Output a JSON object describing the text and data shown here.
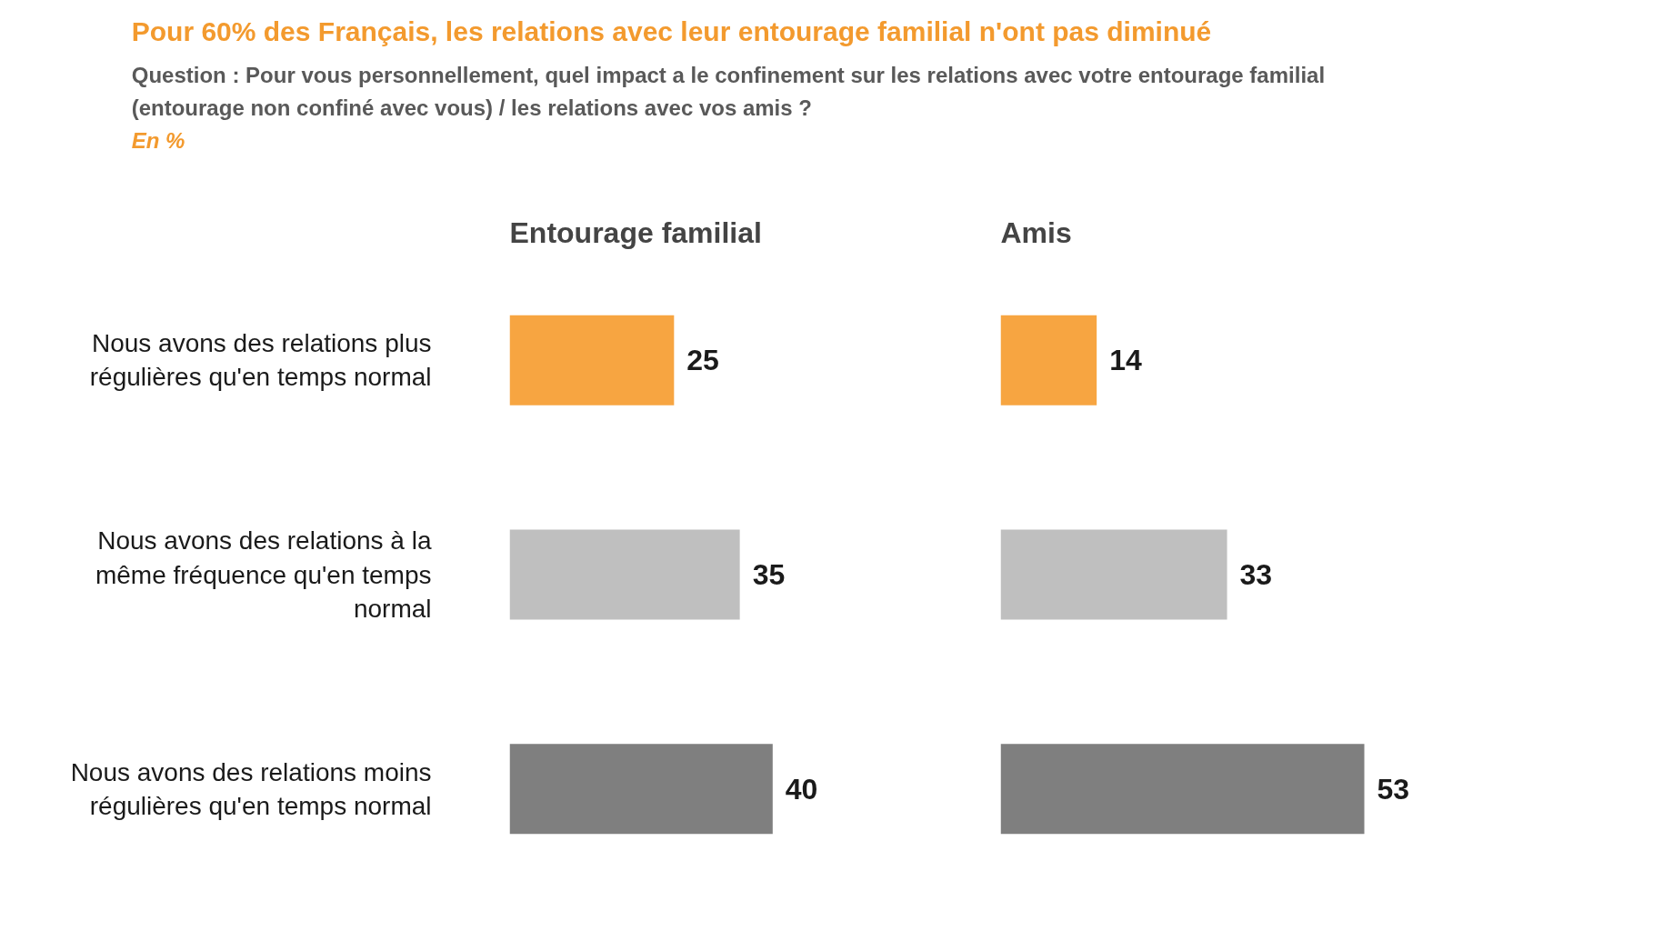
{
  "chart_data": [
    {
      "type": "bar",
      "orientation": "horizontal",
      "title": "Pour 60% des Français, les relations avec leur entourage familial n'ont pas diminué",
      "subtitle": "Question : Pour vous personnellement, quel impact a le confinement sur les relations avec votre entourage familial (entourage non confiné avec vous) / les relations avec vos amis ?",
      "annotations": [
        "En %"
      ],
      "categories": [
        "Nous avons des relations plus régulières qu'en temps normal",
        "Nous avons des relations à la même fréquence qu'en temps normal",
        "Nous avons des relations moins régulières qu'en temps normal"
      ],
      "series": [
        {
          "name": "Entourage familial",
          "values": [
            25,
            35,
            40
          ],
          "colors": [
            "#f7a541",
            "#bfbfbf",
            "#7f7f7f"
          ]
        }
      ],
      "data_labels": true
    },
    {
      "type": "bar",
      "orientation": "horizontal",
      "categories": [
        "Nous avons des relations plus régulières qu'en temps normal",
        "Nous avons des relations à la même fréquence qu'en temps normal",
        "Nous avons des relations moins régulières qu'en temps normal"
      ],
      "series": [
        {
          "name": "Amis",
          "values": [
            14,
            33,
            53
          ],
          "colors": [
            "#f7a541",
            "#bfbfbf",
            "#7f7f7f"
          ]
        }
      ],
      "data_labels": true,
      "tick_labels": false
    }
  ]
}
